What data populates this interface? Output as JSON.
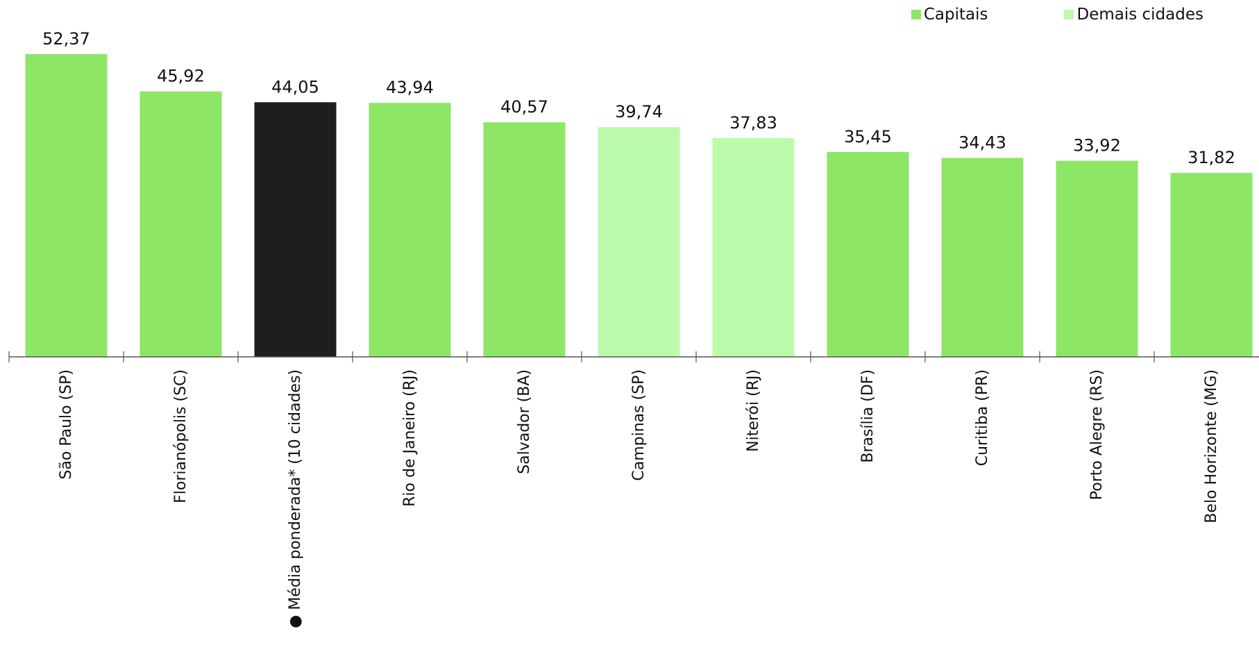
{
  "chart_data": {
    "type": "bar",
    "categories": [
      "São Paulo (SP)",
      "Florianópolis (SC)",
      "● Média ponderada* (10 cidades)",
      "Rio de Janeiro (RJ)",
      "Salvador (BA)",
      "Campinas (SP)",
      "Niterói (RJ)",
      "Brasília (DF)",
      "Curitiba (PR)",
      "Porto Alegre (RS)",
      "Belo Horizonte (MG)"
    ],
    "values": [
      52.37,
      45.92,
      44.05,
      43.94,
      40.57,
      39.74,
      37.83,
      35.45,
      34.43,
      33.92,
      31.82
    ],
    "value_labels": [
      "52,37",
      "45,92",
      "44,05",
      "43,94",
      "40,57",
      "39,74",
      "37,83",
      "35,45",
      "34,43",
      "33,92",
      "31,82"
    ],
    "groups": [
      "Capitais",
      "Capitais",
      "Média",
      "Capitais",
      "Capitais",
      "Demais cidades",
      "Demais cidades",
      "Capitais",
      "Capitais",
      "Capitais",
      "Capitais"
    ],
    "ylim": [
      0,
      54
    ],
    "grid": false,
    "legend_position": "top-right",
    "legend": [
      {
        "label": "Capitais",
        "color": "#8ee667"
      },
      {
        "label": "Demais cidades",
        "color": "#bbfbab"
      }
    ],
    "colors": {
      "Capitais": "#8ee667",
      "Demais cidades": "#bbfbab",
      "Média": "#1e1e1e",
      "axis": "#555555",
      "text": "#111111"
    },
    "title": "",
    "xlabel": "",
    "ylabel": ""
  }
}
